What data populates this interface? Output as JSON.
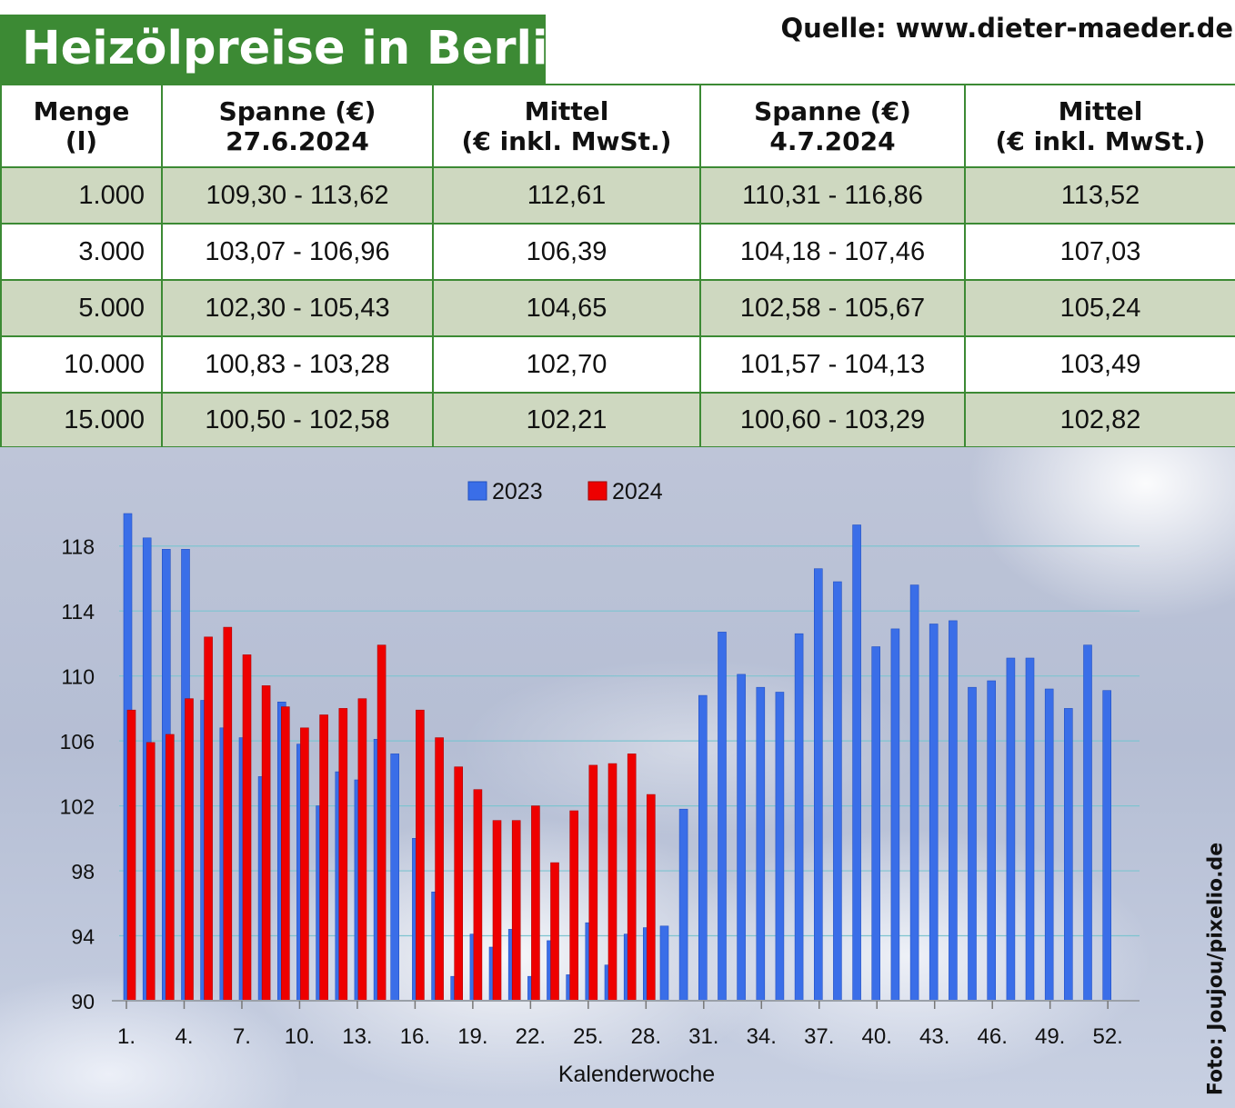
{
  "title": "Heizölpreise in Berlin",
  "source": "Quelle: www.dieter-maeder.de",
  "photo_credit": "Foto: Joujou/pixelio.de",
  "table": {
    "headers": [
      {
        "line1": "Menge",
        "line2": "(l)"
      },
      {
        "line1": "Spanne (€)",
        "line2": "27.6.2024"
      },
      {
        "line1": "Mittel",
        "line2": "(€ inkl. MwSt.)"
      },
      {
        "line1": "Spanne (€)",
        "line2": "4.7.2024"
      },
      {
        "line1": "Mittel",
        "line2": "(€ inkl. MwSt.)"
      }
    ],
    "rows": [
      [
        "1.000",
        "109,30 - 113,62",
        "112,61",
        "110,31 - 116,86",
        "113,52"
      ],
      [
        "3.000",
        "103,07 - 106,96",
        "106,39",
        "104,18 - 107,46",
        "107,03"
      ],
      [
        "5.000",
        "102,30 - 105,43",
        "104,65",
        "102,58 - 105,67",
        "105,24"
      ],
      [
        "10.000",
        "100,83 - 103,28",
        "102,70",
        "101,57 - 104,13",
        "103,49"
      ],
      [
        "15.000",
        "100,50 - 102,58",
        "102,21",
        "100,60 - 103,29",
        "102,82"
      ]
    ]
  },
  "colors": {
    "blue": "#3a6ee8",
    "red": "#ee0000",
    "green": "#3c8a34",
    "grid": "#7ec4d0"
  },
  "chart_data": {
    "type": "bar",
    "xlabel": "Kalenderwoche",
    "ylabel": "",
    "ylim": [
      90,
      120
    ],
    "yticks": [
      90,
      94,
      98,
      102,
      106,
      110,
      114,
      118
    ],
    "x_tick_labels": [
      "1.",
      "4.",
      "7.",
      "10.",
      "13.",
      "16.",
      "19.",
      "22.",
      "25.",
      "28.",
      "31.",
      "34.",
      "37.",
      "40.",
      "43.",
      "46.",
      "49.",
      "52."
    ],
    "x_tick_weeks": [
      1,
      4,
      7,
      10,
      13,
      16,
      19,
      22,
      25,
      28,
      31,
      34,
      37,
      40,
      43,
      46,
      49,
      52
    ],
    "legend": "top-center",
    "weeks": [
      1,
      2,
      3,
      4,
      5,
      6,
      7,
      8,
      9,
      10,
      11,
      12,
      13,
      14,
      15,
      16,
      17,
      18,
      19,
      20,
      21,
      22,
      23,
      24,
      25,
      26,
      27,
      28,
      29,
      30,
      31,
      32,
      33,
      34,
      35,
      36,
      37,
      38,
      39,
      40,
      41,
      42,
      43,
      44,
      45,
      46,
      47,
      48,
      49,
      50,
      51,
      52
    ],
    "series": [
      {
        "name": "2023",
        "color": "#3a6ee8",
        "values": [
          120.0,
          118.5,
          117.8,
          117.8,
          108.5,
          106.8,
          106.2,
          103.8,
          108.4,
          105.8,
          102.0,
          104.1,
          103.6,
          106.1,
          105.2,
          100.0,
          96.7,
          91.5,
          94.1,
          93.3,
          94.4,
          91.5,
          93.7,
          91.6,
          94.8,
          92.2,
          94.1,
          94.5,
          94.6,
          101.8,
          108.8,
          112.7,
          110.1,
          109.3,
          109.0,
          112.6,
          116.6,
          115.8,
          119.3,
          111.8,
          112.9,
          115.6,
          113.2,
          113.4,
          109.3,
          109.7,
          111.1,
          111.1,
          109.2,
          108.0,
          111.9,
          109.1
        ]
      },
      {
        "name": "2024",
        "color": "#ee0000",
        "values": [
          107.9,
          105.9,
          106.4,
          108.6,
          112.4,
          113.0,
          111.3,
          109.4,
          108.1,
          106.8,
          107.6,
          108.0,
          108.6,
          111.9,
          null,
          107.9,
          106.2,
          104.4,
          103.0,
          101.1,
          101.1,
          102.0,
          98.5,
          101.7,
          104.5,
          104.6,
          105.2,
          102.7,
          null,
          null,
          null,
          null,
          null,
          null,
          null,
          null,
          null,
          null,
          null,
          null,
          null,
          null,
          null,
          null,
          null,
          null,
          null,
          null,
          null,
          null,
          null,
          null
        ]
      }
    ]
  }
}
